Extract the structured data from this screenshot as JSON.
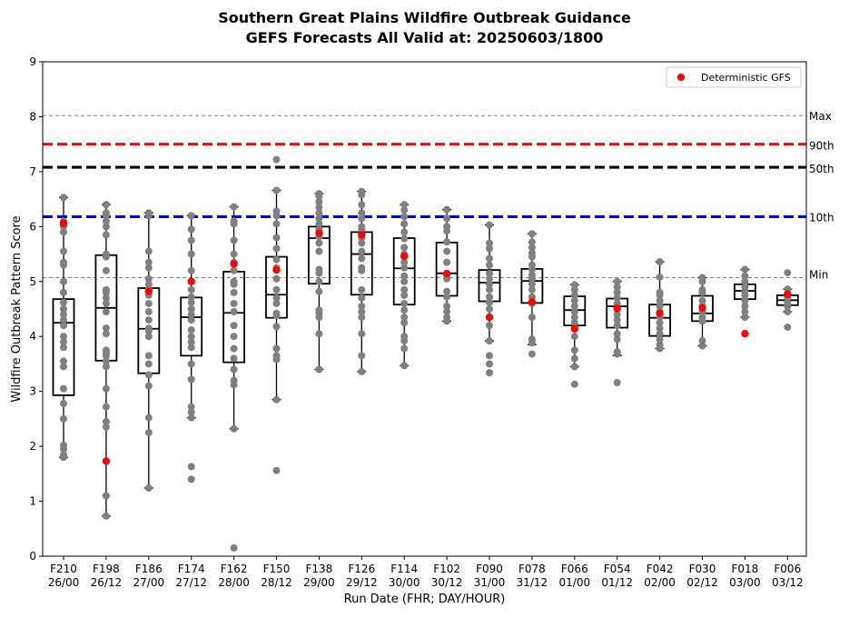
{
  "chart_data": {
    "type": "box",
    "title_line1": "Southern Great Plains Wildfire Outbreak Guidance",
    "title_line2": "GEFS Forecasts All Valid at: 20250603/1800",
    "xlabel": "Run Date (FHR; DAY/HOUR)",
    "ylabel": "Wildfire Outbreak Pattern Score",
    "ylim": [
      0,
      9
    ],
    "yticks": [
      "0",
      "1",
      "2",
      "3",
      "4",
      "5",
      "6",
      "7",
      "8",
      "9"
    ],
    "legend": {
      "label": "Deterministic GFS",
      "position": "top-right",
      "color": "#ff0000"
    },
    "colors": {
      "member": "#808080",
      "deterministic": "#ff0000",
      "p90": "#ff0000",
      "p50": "#000000",
      "p10": "#0000ff",
      "minmax": "#808080"
    },
    "reference_lines": [
      {
        "label": "Max",
        "value": 8.02,
        "style": "gray-dashed"
      },
      {
        "label": "90th",
        "value": 7.5,
        "style": "red-dashed"
      },
      {
        "label": "50th",
        "value": 7.08,
        "style": "black-dashed"
      },
      {
        "label": "10th",
        "value": 6.18,
        "style": "blue-dashed"
      },
      {
        "label": "Min",
        "value": 5.07,
        "style": "gray-dashed"
      }
    ],
    "categories": [
      {
        "fhr": "F210",
        "day": "26/00",
        "q1": 2.93,
        "median": 4.25,
        "q3": 4.68,
        "wlo": 1.8,
        "whi": 6.53,
        "det": 6.06,
        "members": [
          1.8,
          1.85,
          1.95,
          2.02,
          2.5,
          2.78,
          3.05,
          3.45,
          3.55,
          3.8,
          3.9,
          4.0,
          4.2,
          4.3,
          4.4,
          4.5,
          4.62,
          4.8,
          5.0,
          5.3,
          5.35,
          5.55,
          5.9,
          6.0,
          6.1,
          6.53
        ]
      },
      {
        "fhr": "F198",
        "day": "26/12",
        "q1": 3.56,
        "median": 4.52,
        "q3": 5.48,
        "wlo": 0.73,
        "whi": 6.4,
        "det": 1.73,
        "members": [
          0.73,
          1.1,
          2.35,
          2.45,
          2.72,
          3.05,
          3.45,
          3.55,
          3.65,
          3.7,
          3.75,
          4.05,
          4.15,
          4.45,
          4.6,
          4.7,
          4.8,
          4.85,
          5.2,
          5.45,
          5.5,
          5.85,
          6.0,
          6.1,
          6.2,
          6.25,
          6.4
        ]
      },
      {
        "fhr": "F186",
        "day": "27/00",
        "q1": 3.33,
        "median": 4.14,
        "q3": 4.88,
        "wlo": 1.24,
        "whi": 6.25,
        "det": 4.82,
        "members": [
          1.24,
          2.25,
          2.52,
          3.1,
          3.3,
          3.5,
          3.65,
          4.0,
          4.1,
          4.15,
          4.3,
          4.45,
          4.6,
          4.75,
          4.85,
          4.95,
          5.05,
          5.25,
          5.35,
          5.55,
          6.2,
          6.25
        ]
      },
      {
        "fhr": "F174",
        "day": "27/12",
        "q1": 3.65,
        "median": 4.35,
        "q3": 4.71,
        "wlo": 2.52,
        "whi": 6.2,
        "det": 5.0,
        "members": [
          1.4,
          1.63,
          2.52,
          2.62,
          2.72,
          3.22,
          3.5,
          3.8,
          3.9,
          4.0,
          4.12,
          4.3,
          4.4,
          4.5,
          4.62,
          4.72,
          4.85,
          5.0,
          5.2,
          5.5,
          5.75,
          5.95,
          6.2
        ]
      },
      {
        "fhr": "F162",
        "day": "28/00",
        "q1": 3.53,
        "median": 4.43,
        "q3": 5.18,
        "wlo": 2.32,
        "whi": 6.36,
        "det": 5.32,
        "members": [
          0.15,
          2.32,
          3.12,
          3.2,
          3.4,
          3.6,
          3.78,
          4.0,
          4.2,
          4.45,
          4.6,
          4.8,
          4.95,
          5.0,
          5.2,
          5.35,
          5.5,
          5.75,
          6.05,
          6.1,
          6.36
        ]
      },
      {
        "fhr": "F150",
        "day": "28/12",
        "q1": 4.34,
        "median": 4.76,
        "q3": 5.45,
        "wlo": 2.85,
        "whi": 6.66,
        "det": 5.21,
        "members": [
          1.56,
          2.85,
          3.58,
          3.65,
          3.78,
          4.18,
          4.38,
          4.42,
          4.6,
          4.7,
          4.85,
          5.05,
          5.25,
          5.4,
          5.6,
          5.8,
          6.05,
          6.2,
          6.28,
          6.66,
          7.22
        ]
      },
      {
        "fhr": "F138",
        "day": "29/00",
        "q1": 4.96,
        "median": 5.79,
        "q3": 6.0,
        "wlo": 3.4,
        "whi": 6.6,
        "det": 5.88,
        "members": [
          3.4,
          4.05,
          4.35,
          4.42,
          4.48,
          4.82,
          5.0,
          5.15,
          5.22,
          5.55,
          5.7,
          5.82,
          5.95,
          6.05,
          6.15,
          6.25,
          6.35,
          6.45,
          6.55,
          6.6
        ]
      },
      {
        "fhr": "F126",
        "day": "29/12",
        "q1": 4.76,
        "median": 5.5,
        "q3": 5.9,
        "wlo": 3.36,
        "whi": 6.64,
        "det": 5.85,
        "members": [
          3.36,
          3.65,
          4.05,
          4.35,
          4.45,
          4.55,
          4.7,
          4.85,
          5.2,
          5.25,
          5.42,
          5.55,
          5.7,
          5.8,
          5.95,
          6.0,
          6.15,
          6.25,
          6.4,
          6.58,
          6.64
        ]
      },
      {
        "fhr": "F114",
        "day": "30/00",
        "q1": 4.58,
        "median": 5.24,
        "q3": 5.79,
        "wlo": 3.47,
        "whi": 6.4,
        "det": 5.46,
        "members": [
          3.47,
          3.78,
          3.92,
          4.0,
          4.25,
          4.35,
          4.48,
          4.6,
          4.75,
          4.85,
          5.0,
          5.1,
          5.25,
          5.35,
          5.5,
          5.62,
          5.78,
          5.9,
          6.05,
          6.18,
          6.3,
          6.4
        ]
      },
      {
        "fhr": "F102",
        "day": "30/12",
        "q1": 4.74,
        "median": 5.15,
        "q3": 5.71,
        "wlo": 4.28,
        "whi": 6.31,
        "det": 5.14,
        "members": [
          4.28,
          4.35,
          4.45,
          4.55,
          4.72,
          4.82,
          5.05,
          5.15,
          5.35,
          5.55,
          5.72,
          5.92,
          6.0,
          6.15,
          6.31
        ]
      },
      {
        "fhr": "F090",
        "day": "31/00",
        "q1": 4.64,
        "median": 4.98,
        "q3": 5.21,
        "wlo": 3.92,
        "whi": 6.03,
        "det": 4.35,
        "members": [
          3.34,
          3.5,
          3.65,
          3.92,
          4.2,
          4.35,
          4.5,
          4.62,
          4.72,
          4.85,
          4.95,
          5.05,
          5.15,
          5.3,
          5.42,
          5.6,
          5.7,
          6.03
        ]
      },
      {
        "fhr": "F078",
        "day": "31/12",
        "q1": 4.61,
        "median": 5.01,
        "q3": 5.23,
        "wlo": 3.85,
        "whi": 5.87,
        "det": 4.63,
        "members": [
          3.68,
          3.88,
          3.95,
          4.35,
          4.6,
          4.72,
          4.85,
          4.95,
          5.05,
          5.12,
          5.22,
          5.3,
          5.45,
          5.52,
          5.62,
          5.72,
          5.87
        ]
      },
      {
        "fhr": "F066",
        "day": "01/00",
        "q1": 4.2,
        "median": 4.48,
        "q3": 4.73,
        "wlo": 3.45,
        "whi": 4.94,
        "det": 4.14,
        "members": [
          3.13,
          3.45,
          3.6,
          3.75,
          4.0,
          4.15,
          4.25,
          4.35,
          4.45,
          4.55,
          4.65,
          4.75,
          4.85,
          4.94
        ]
      },
      {
        "fhr": "F054",
        "day": "01/12",
        "q1": 4.16,
        "median": 4.55,
        "q3": 4.69,
        "wlo": 3.65,
        "whi": 5.0,
        "det": 4.51,
        "members": [
          3.16,
          3.68,
          3.72,
          3.95,
          4.05,
          4.2,
          4.3,
          4.4,
          4.5,
          4.6,
          4.7,
          4.8,
          4.9,
          5.0
        ]
      },
      {
        "fhr": "F042",
        "day": "02/00",
        "q1": 4.01,
        "median": 4.34,
        "q3": 4.58,
        "wlo": 3.78,
        "whi": 5.36,
        "det": 4.42,
        "members": [
          3.78,
          3.85,
          3.95,
          4.05,
          4.15,
          4.25,
          4.35,
          4.45,
          4.55,
          4.65,
          4.75,
          4.8,
          5.08,
          5.36
        ]
      },
      {
        "fhr": "F030",
        "day": "02/12",
        "q1": 4.28,
        "median": 4.42,
        "q3": 4.74,
        "wlo": 3.83,
        "whi": 5.07,
        "det": 4.52,
        "members": [
          3.83,
          3.92,
          4.28,
          4.35,
          4.45,
          4.55,
          4.65,
          4.8,
          4.85,
          5.0,
          5.07
        ]
      },
      {
        "fhr": "F018",
        "day": "03/00",
        "q1": 4.68,
        "median": 4.83,
        "q3": 4.95,
        "wlo": 4.35,
        "whi": 5.22,
        "det": 4.05,
        "members": [
          4.35,
          4.45,
          4.55,
          4.65,
          4.75,
          4.82,
          4.9,
          5.0,
          5.1,
          5.22
        ]
      },
      {
        "fhr": "F006",
        "day": "03/12",
        "q1": 4.57,
        "median": 4.66,
        "q3": 4.75,
        "wlo": 4.45,
        "whi": 4.86,
        "det": 4.77,
        "members": [
          4.17,
          4.45,
          4.55,
          4.62,
          4.7,
          4.78,
          4.86,
          5.16
        ]
      }
    ]
  }
}
